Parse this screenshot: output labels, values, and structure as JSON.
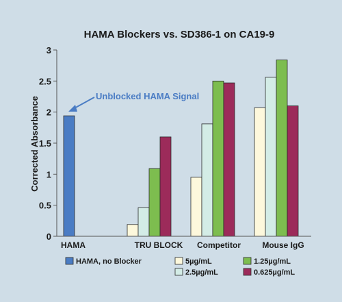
{
  "chart_data": {
    "type": "bar",
    "title": "HAMA Blockers vs. SD386-1 on CA19-9",
    "xlabel": "",
    "ylabel": "Corrected Absorbance",
    "ylim": [
      0,
      3
    ],
    "yticks": [
      "0",
      "0.5",
      "1",
      "1.5",
      "2",
      "2.5",
      "3"
    ],
    "grid": false,
    "legend_position": "bottom",
    "categories": [
      "HAMA",
      "TRU BLOCK",
      "Competitor",
      "Mouse IgG"
    ],
    "series": [
      {
        "name": "HAMA, no Blocker",
        "color": "#4a7cc4",
        "values": [
          1.94,
          null,
          null,
          null
        ]
      },
      {
        "name": "5µg/mL",
        "color": "#fdf8dc",
        "values": [
          null,
          0.19,
          0.95,
          2.07
        ]
      },
      {
        "name": "2.5µg/mL",
        "color": "#d3ece6",
        "values": [
          null,
          0.46,
          1.81,
          2.56
        ]
      },
      {
        "name": "1.25µg/mL",
        "color": "#7dbd4f",
        "values": [
          null,
          1.09,
          2.5,
          2.84
        ]
      },
      {
        "name": "0.625µg/mL",
        "color": "#9c2b5a",
        "values": [
          null,
          1.6,
          2.47,
          2.1
        ]
      }
    ],
    "annotations": [
      {
        "text": "Unblocked HAMA Signal",
        "color": "#4a7cc4"
      }
    ]
  }
}
